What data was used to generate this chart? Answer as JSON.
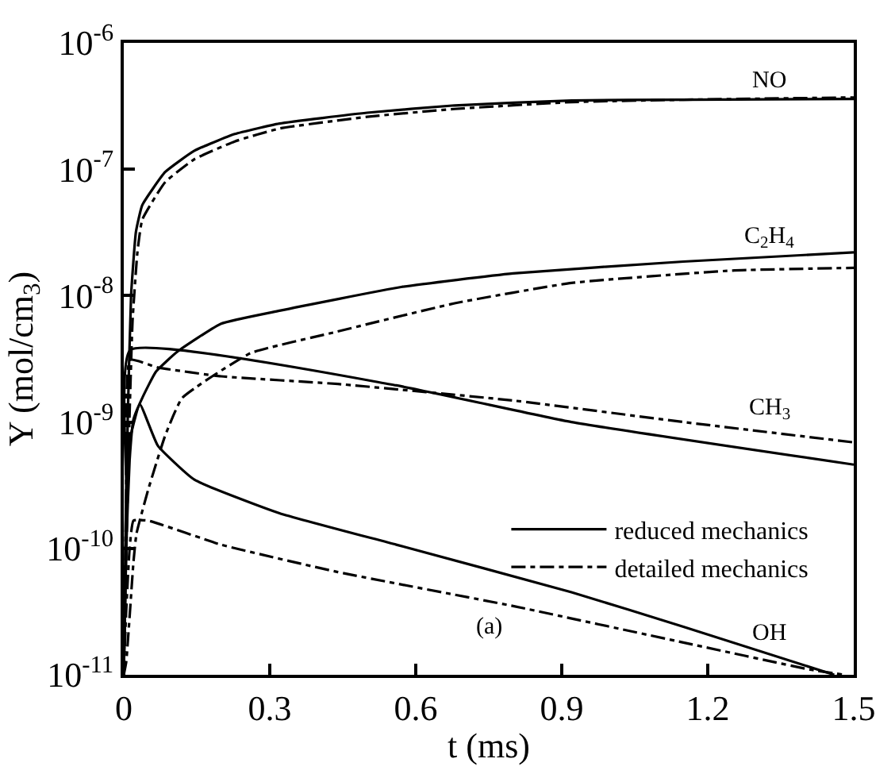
{
  "chart_data": {
    "type": "line",
    "xlabel": "t (ms)",
    "ylabel": "Y (mol/cm$_{3}$)",
    "log": "y",
    "xlim": [
      0,
      1.5
    ],
    "xticks": [
      0,
      0.3,
      0.6,
      0.9,
      1.2,
      1.5
    ],
    "ylim": [
      1e-11,
      1e-06
    ],
    "yticks": [
      {
        "value": 1e-11,
        "label": "10$^{-11}$"
      },
      {
        "value": 1e-10,
        "label": "10$^{-10}$"
      },
      {
        "value": 1e-09,
        "label": "10$^{-9}$"
      },
      {
        "value": 1e-08,
        "label": "10$^{-8}$"
      },
      {
        "value": 1e-07,
        "label": "10$^{-7}$"
      },
      {
        "value": 1e-06,
        "label": "10$^{-6}$"
      }
    ],
    "grid": false,
    "legend": "right",
    "marker": "none",
    "series": [
      {
        "name": "reduced mechanics",
        "color": "#000000",
        "line_style": "solid",
        "x": [
          0,
          0.008,
          0.015,
          0.025,
          0.038,
          0.085,
          0.145,
          0.228,
          0.32,
          0.5,
          0.68,
          0.92,
          1.15,
          1.5
        ],
        "values": [
          1e-11,
          1e-09,
          1e-08,
          3.2e-08,
          5.2e-08,
          9.5e-08,
          1.4e-07,
          1.9e-07,
          2.3e-07,
          2.8e-07,
          3.2e-07,
          3.5e-07,
          3.55e-07,
          3.6e-07
        ]
      },
      {
        "name": "detailed mechanics",
        "color": "#000000",
        "line_style": "dashdot",
        "x": [
          0,
          0.01,
          0.018,
          0.028,
          0.038,
          0.085,
          0.145,
          0.228,
          0.32,
          0.5,
          0.68,
          0.92,
          1.15,
          1.5
        ],
        "values": [
          1e-11,
          6.3e-10,
          6.3e-09,
          2.2e-08,
          4e-08,
          7.9e-08,
          1.2e-07,
          1.66e-07,
          2.1e-07,
          2.6e-07,
          3e-07,
          3.4e-07,
          3.55e-07,
          3.7e-07
        ]
      },
      {
        "color": "#000000",
        "line_style": "solid",
        "x": [
          0,
          0.005,
          0.012,
          0.02,
          0.038,
          0.066,
          0.11,
          0.2,
          0.32,
          0.57,
          0.8,
          1.15,
          1.5
        ],
        "values": [
          1e-11,
          1e-10,
          5e-10,
          1.05e-09,
          1.55e-09,
          2.5e-09,
          3.6e-09,
          6e-09,
          7.6e-09,
          1.17e-08,
          1.5e-08,
          1.86e-08,
          2.2e-08
        ]
      },
      {
        "color": "#000000",
        "line_style": "dashdot",
        "x": [
          0,
          0.005,
          0.02,
          0.026,
          0.05,
          0.085,
          0.12,
          0.26,
          0.43,
          0.68,
          0.92,
          1.25,
          1.5
        ],
        "values": [
          1e-11,
          1.26e-11,
          7.9e-11,
          1.3e-10,
          2.9e-10,
          7.8e-10,
          1.55e-09,
          3.5e-09,
          5.1e-09,
          8.7e-09,
          1.26e-08,
          1.58e-08,
          1.66e-08
        ]
      },
      {
        "color": "#000000",
        "line_style": "solid",
        "x": [
          0,
          0.005,
          0.013,
          0.56,
          0.92,
          1.5
        ],
        "values": [
          1e-11,
          3.2e-10,
          3.7e-09,
          1.95e-09,
          1e-09,
          4.6e-10
        ]
      },
      {
        "color": "#000000",
        "line_style": "dashdot",
        "x": [
          0,
          0.005,
          0.013,
          0.07,
          0.2,
          0.44,
          0.8,
          1.15,
          1.5
        ],
        "values": [
          1e-11,
          2.5e-10,
          3.1e-09,
          2.7e-09,
          2.3e-09,
          2e-09,
          1.48e-09,
          1e-09,
          6.9e-10
        ]
      },
      {
        "color": "#000000",
        "line_style": "solid",
        "x": [
          0,
          0.005,
          0.01,
          0.033,
          0.07,
          0.145,
          0.32,
          0.56,
          0.92,
          1.15,
          1.46
        ],
        "values": [
          1e-11,
          1e-10,
          6.5e-10,
          1.38e-09,
          6.5e-10,
          3.5e-10,
          1.9e-10,
          1.07e-10,
          4.5e-11,
          2.4e-11,
          1e-11
        ]
      },
      {
        "color": "#000000",
        "line_style": "dashdot",
        "x": [
          0,
          0.005,
          0.012,
          0.02,
          0.05,
          0.2,
          0.44,
          0.8,
          1.15,
          1.41,
          1.48
        ],
        "values": [
          1e-11,
          3.2e-11,
          1e-10,
          1.66e-10,
          1.66e-10,
          1.07e-10,
          6.5e-11,
          3.5e-11,
          1.8e-11,
          1.1e-11,
          1e-11
        ]
      }
    ],
    "annotations": [
      "NO",
      "C$_{2}$H$_{4}$",
      "CH$_{3}$",
      "OH",
      "(a)"
    ]
  }
}
